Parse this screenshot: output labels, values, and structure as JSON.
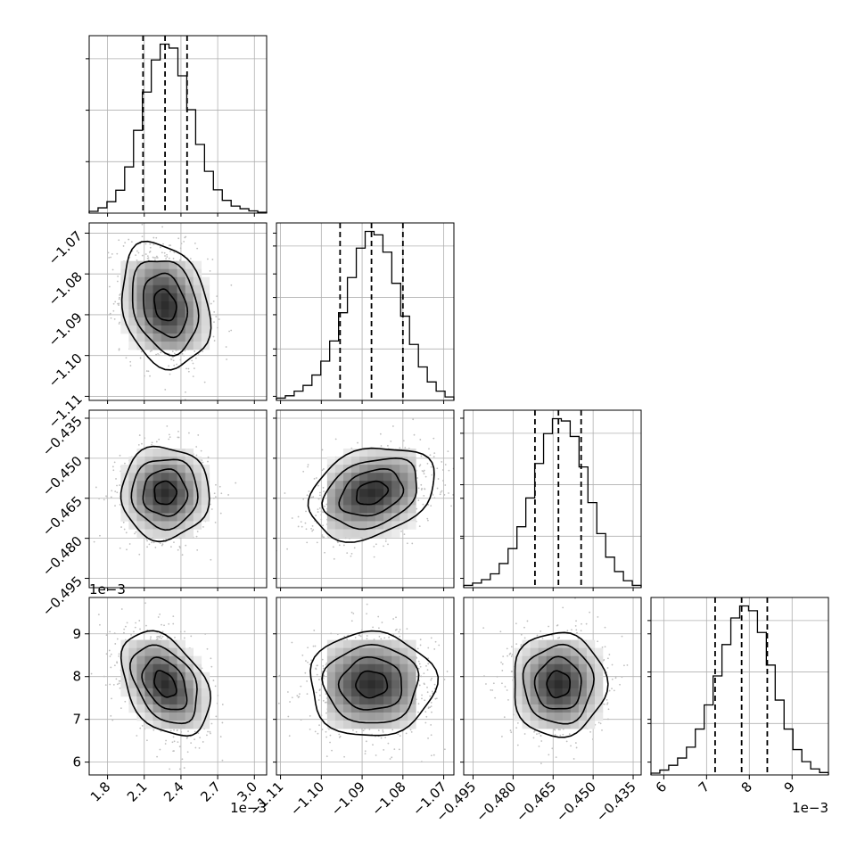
{
  "chart_data": {
    "type": "corner",
    "title": "",
    "parameters": [
      {
        "name": "",
        "range": [
          0.00165,
          0.0031
        ],
        "ticks": [
          0.0018,
          0.0021,
          0.0024,
          0.0027,
          0.003
        ],
        "tick_labels": [
          "1.8",
          "2.1",
          "2.4",
          "2.7",
          "3.0"
        ],
        "offset_label": "1e−3",
        "quantiles": [
          0.00209,
          0.00227,
          0.00245
        ],
        "histogram": [
          0.4,
          1.2,
          2.6,
          5.2,
          10.5,
          18.8,
          27.5,
          34.8,
          38.4,
          37.5,
          31.2,
          23.5,
          15.6,
          9.5,
          5.3,
          2.9,
          1.6,
          1.0,
          0.5,
          0.2
        ]
      },
      {
        "name": "",
        "range": [
          -1.111,
          -1.0675
        ],
        "ticks": [
          -1.11,
          -1.1,
          -1.09,
          -1.08,
          -1.07
        ],
        "tick_labels": [
          "−1.11",
          "−1.10",
          "−1.09",
          "−1.08",
          "−1.07"
        ],
        "offset_label": "",
        "quantiles": [
          -1.0954,
          -1.0877,
          -1.08
        ],
        "histogram": [
          0.4,
          0.8,
          1.6,
          2.6,
          4.4,
          6.8,
          10.3,
          15.2,
          21.3,
          26.4,
          29.3,
          28.7,
          25.7,
          20.3,
          14.6,
          9.7,
          5.8,
          3.2,
          1.6,
          0.6
        ]
      },
      {
        "name": "",
        "range": [
          -0.4985,
          -0.432
        ],
        "ticks": [
          -0.495,
          -0.48,
          -0.465,
          -0.45,
          -0.435
        ],
        "tick_labels": [
          "−0.495",
          "−0.480",
          "−0.465",
          "−0.450",
          "−0.435"
        ],
        "offset_label": "",
        "quantiles": [
          -0.4718,
          -0.463,
          -0.4545
        ],
        "histogram": [
          0.4,
          0.8,
          1.4,
          2.4,
          4.2,
          6.8,
          10.6,
          15.6,
          21.6,
          26.8,
          29.4,
          29.0,
          26.3,
          21.0,
          14.8,
          9.4,
          5.3,
          2.8,
          1.2,
          0.4
        ]
      },
      {
        "name": "",
        "range": [
          0.0057,
          0.00985
        ],
        "ticks": [
          0.006,
          0.007,
          0.008,
          0.009
        ],
        "tick_labels": [
          "6",
          "7",
          "8",
          "9"
        ],
        "offset_label": "1e−3",
        "quantiles": [
          0.0072,
          0.00782,
          0.00842
        ],
        "histogram": [
          0.3,
          0.8,
          1.6,
          2.8,
          4.6,
          7.6,
          11.6,
          16.4,
          21.6,
          26.0,
          28.0,
          27.2,
          23.6,
          18.2,
          12.4,
          7.6,
          4.2,
          2.2,
          1.0,
          0.4
        ]
      }
    ],
    "matrix_offset_label": "1e−3",
    "pairs": [
      {
        "x": 0,
        "y": 1,
        "mean": [
          0.00227,
          -1.0877
        ],
        "sd": [
          0.00018,
          0.0077
        ],
        "corr": -0.22
      },
      {
        "x": 0,
        "y": 2,
        "mean": [
          0.00227,
          -0.463
        ],
        "sd": [
          0.00018,
          0.0087
        ],
        "corr": 0.0
      },
      {
        "x": 1,
        "y": 2,
        "mean": [
          -1.0877,
          -0.463
        ],
        "sd": [
          0.0077,
          0.0087
        ],
        "corr": 0.28
      },
      {
        "x": 0,
        "y": 3,
        "mean": [
          0.00227,
          0.00782
        ],
        "sd": [
          0.00018,
          0.00061
        ],
        "corr": -0.38
      },
      {
        "x": 1,
        "y": 3,
        "mean": [
          -1.0877,
          0.00782
        ],
        "sd": [
          0.0077,
          0.00061
        ],
        "corr": 0.0
      },
      {
        "x": 2,
        "y": 3,
        "mean": [
          -0.463,
          0.00782
        ],
        "sd": [
          0.0087,
          0.00061
        ],
        "corr": 0.0
      }
    ],
    "contour_levels": [
      0.5,
      1.0,
      1.5,
      2.0
    ],
    "grid": true,
    "colors": {
      "line": "#000000",
      "grid": "#b0b0b0",
      "scatter": "#bfbfbf",
      "density": "#000000"
    }
  }
}
